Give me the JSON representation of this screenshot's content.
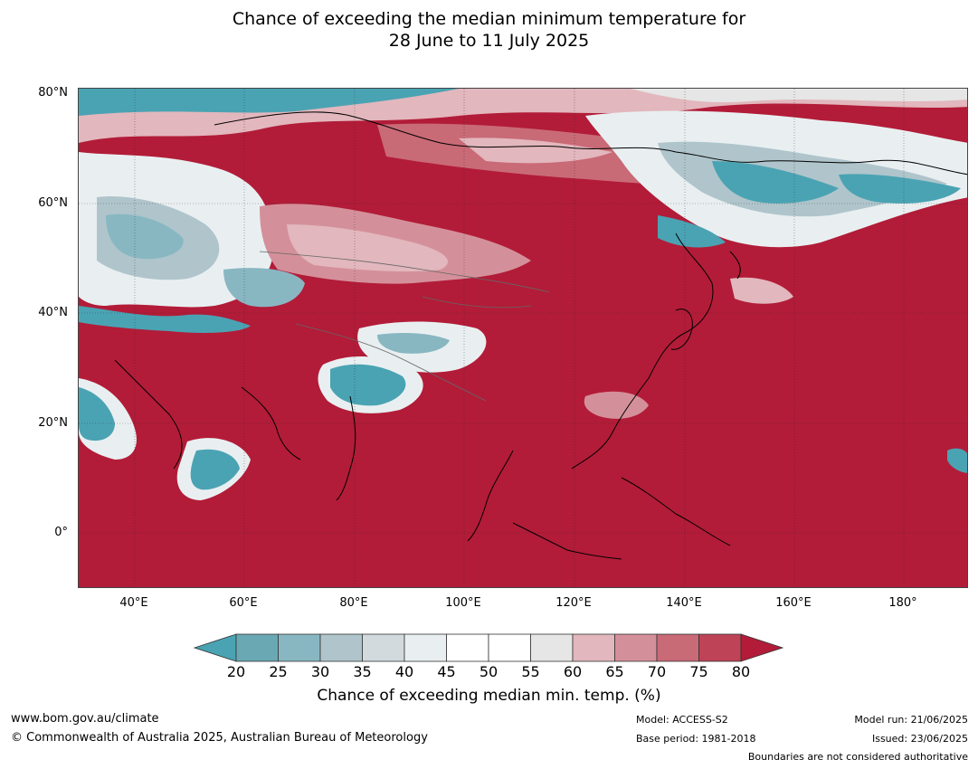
{
  "title_line1": "Chance of exceeding the median minimum temperature for",
  "title_line2": "28 June to 11 July 2025",
  "lat_labels": [
    "80°N",
    "60°N",
    "40°N",
    "20°N",
    "0°"
  ],
  "lon_labels": [
    "40°E",
    "60°E",
    "80°E",
    "100°E",
    "120°E",
    "140°E",
    "160°E",
    "180°"
  ],
  "colorbar": {
    "ticks": [
      "20",
      "25",
      "30",
      "35",
      "40",
      "45",
      "50",
      "55",
      "60",
      "65",
      "70",
      "75",
      "80"
    ],
    "colors": [
      "#4aa3b3",
      "#6aa8b4",
      "#88b7c2",
      "#afc5cb",
      "#d2dade",
      "#e9eff1",
      "#ffffff",
      "#ffffff",
      "#e6e6e6",
      "#e2b7bd",
      "#d4909a",
      "#c96a77",
      "#be4356",
      "#b21c38"
    ],
    "label": "Chance of exceeding median min. temp. (%)"
  },
  "footer": {
    "website": "www.bom.gov.au/climate",
    "copyright": "© Commonwealth of Australia 2025, Australian Bureau of Meteorology",
    "model": "Model: ACCESS-S2",
    "base_period": "Base period: 1981-2018",
    "model_run": "Model run: 21/06/2025",
    "issued": "Issued: 23/06/2025",
    "disclaimer": "Boundaries are not considered authoritative"
  }
}
